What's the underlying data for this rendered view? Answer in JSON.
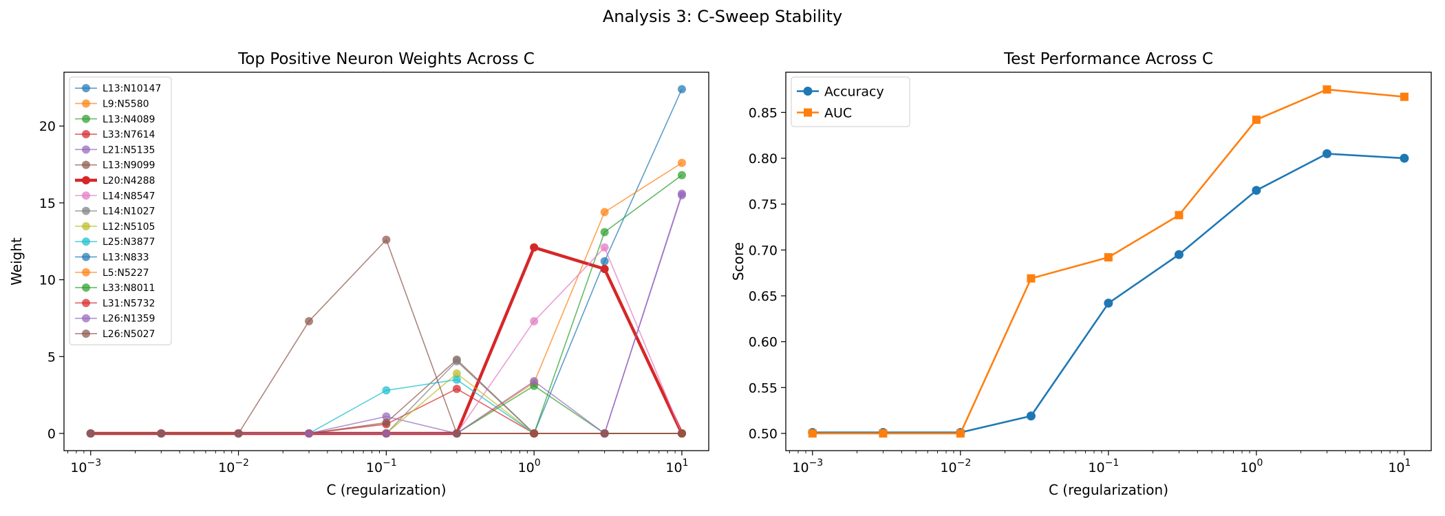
{
  "suptitle": "Analysis 3: C-Sweep Stability",
  "chart_data": [
    {
      "type": "line",
      "title": "Top Positive Neuron Weights Across C",
      "xlabel": "C (regularization)",
      "ylabel": "Weight",
      "xscale": "log",
      "x": [
        0.001,
        0.003,
        0.01,
        0.03,
        0.1,
        0.3,
        1,
        3,
        10
      ],
      "xlim": [
        0.00066,
        15.2
      ],
      "ylim": [
        -1.12,
        23.5
      ],
      "yticks": [
        0,
        5,
        10,
        15,
        20
      ],
      "xticks": [
        {
          "value": 0.001,
          "base": "10",
          "exp": "−3"
        },
        {
          "value": 0.01,
          "base": "10",
          "exp": "−2"
        },
        {
          "value": 0.1,
          "base": "10",
          "exp": "−1"
        },
        {
          "value": 1,
          "base": "10",
          "exp": "0"
        },
        {
          "value": 10,
          "base": "10",
          "exp": "1"
        }
      ],
      "grid": false,
      "legend_position": "upper left",
      "series": [
        {
          "name": "L13:N10147",
          "color": "#1f77b4",
          "values": [
            0,
            0,
            0,
            0,
            0,
            0,
            0,
            11.2,
            22.4
          ]
        },
        {
          "name": "L9:N5580",
          "color": "#ff7f0e",
          "values": [
            0,
            0,
            0,
            0,
            0,
            0,
            3.3,
            14.4,
            17.6
          ]
        },
        {
          "name": "L13:N4089",
          "color": "#2ca02c",
          "values": [
            0,
            0,
            0,
            0,
            0,
            0,
            0,
            13.1,
            16.8
          ]
        },
        {
          "name": "L33:N7614",
          "color": "#d62728",
          "values": [
            0,
            0,
            0,
            0,
            0.6,
            2.9,
            0,
            0,
            0
          ]
        },
        {
          "name": "L21:N5135",
          "color": "#9467bd",
          "values": [
            0,
            0,
            0,
            0,
            1.1,
            0,
            0,
            0,
            15.5
          ]
        },
        {
          "name": "L13:N9099",
          "color": "#8c564b",
          "values": [
            0,
            0,
            0,
            0,
            0.7,
            4.8,
            0,
            0,
            0
          ]
        },
        {
          "name": "L20:N4288",
          "color": "#d62728",
          "bold": true,
          "values": [
            0,
            0,
            0,
            0,
            0,
            0,
            12.1,
            10.7,
            0
          ]
        },
        {
          "name": "L14:N8547",
          "color": "#e377c2",
          "values": [
            0,
            0,
            0,
            0,
            0,
            0,
            7.3,
            12.1,
            0
          ]
        },
        {
          "name": "L14:N1027",
          "color": "#7f7f7f",
          "values": [
            0,
            0,
            0,
            0,
            0,
            4.7,
            0,
            0,
            0
          ]
        },
        {
          "name": "L12:N5105",
          "color": "#bcbd22",
          "values": [
            0,
            0,
            0,
            0,
            0,
            3.9,
            0,
            0,
            0
          ]
        },
        {
          "name": "L25:N3877",
          "color": "#17becf",
          "values": [
            0,
            0,
            0,
            0,
            2.8,
            3.5,
            0,
            0,
            0
          ]
        },
        {
          "name": "L13:N833",
          "color": "#1f77b4",
          "values": [
            0,
            0,
            0,
            0,
            0,
            0,
            0,
            0,
            0
          ]
        },
        {
          "name": "L5:N5227",
          "color": "#ff7f0e",
          "values": [
            0,
            0,
            0,
            0,
            0,
            0,
            0,
            0,
            0
          ]
        },
        {
          "name": "L33:N8011",
          "color": "#2ca02c",
          "values": [
            0,
            0,
            0,
            0,
            0,
            0,
            3.1,
            0,
            0
          ]
        },
        {
          "name": "L31:N5732",
          "color": "#d62728",
          "values": [
            0,
            0,
            0,
            0,
            0,
            0,
            0,
            0,
            0
          ]
        },
        {
          "name": "L26:N1359",
          "color": "#9467bd",
          "values": [
            0,
            0,
            0,
            0,
            0,
            0,
            3.4,
            0,
            15.6
          ]
        },
        {
          "name": "L26:N5027",
          "color": "#8c564b",
          "values": [
            0,
            0,
            0,
            7.3,
            12.6,
            0,
            0,
            0,
            0
          ]
        }
      ]
    },
    {
      "type": "line",
      "title": "Test Performance Across C",
      "xlabel": "C (regularization)",
      "ylabel": "Score",
      "xscale": "log",
      "x": [
        0.001,
        0.003,
        0.01,
        0.03,
        0.1,
        0.3,
        1,
        3,
        10
      ],
      "xlim": [
        0.00066,
        15.2
      ],
      "ylim": [
        0.4812,
        0.8938
      ],
      "yticks": [
        0.5,
        0.55,
        0.6,
        0.65,
        0.7,
        0.75,
        0.8,
        0.85
      ],
      "ytick_labels": [
        "0.50",
        "0.55",
        "0.60",
        "0.65",
        "0.70",
        "0.75",
        "0.80",
        "0.85"
      ],
      "xticks": [
        {
          "value": 0.001,
          "base": "10",
          "exp": "−3"
        },
        {
          "value": 0.01,
          "base": "10",
          "exp": "−2"
        },
        {
          "value": 0.1,
          "base": "10",
          "exp": "−1"
        },
        {
          "value": 1,
          "base": "10",
          "exp": "0"
        },
        {
          "value": 10,
          "base": "10",
          "exp": "1"
        }
      ],
      "grid": false,
      "legend_position": "upper left",
      "series": [
        {
          "name": "Accuracy",
          "color": "#1f77b4",
          "marker": "circle",
          "values": [
            0.501,
            0.501,
            0.501,
            0.519,
            0.642,
            0.695,
            0.765,
            0.805,
            0.8
          ]
        },
        {
          "name": "AUC",
          "color": "#ff7f0e",
          "marker": "square",
          "values": [
            0.5,
            0.5,
            0.5,
            0.669,
            0.692,
            0.738,
            0.842,
            0.875,
            0.867
          ]
        }
      ]
    }
  ]
}
